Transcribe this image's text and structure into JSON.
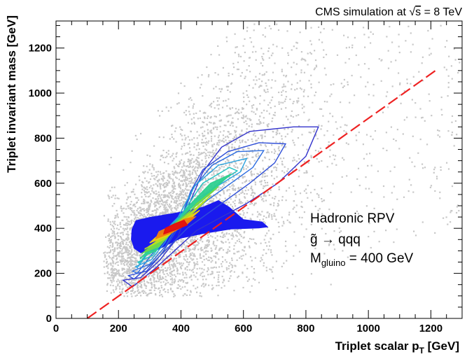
{
  "chart_data": {
    "type": "heatmap",
    "header": {
      "prefix": "CMS simulation at ",
      "sqrt_symbol": "√",
      "sqrt_arg": "s",
      "suffix": " = 8 TeV"
    },
    "xlabel": {
      "main": "Triplet scalar p",
      "sub": "T",
      "unit": " [GeV]"
    },
    "ylabel": "Triplet invariant mass [GeV]",
    "xlim": [
      0,
      1300
    ],
    "ylim": [
      0,
      1320
    ],
    "x_ticks": [
      "0",
      "200",
      "400",
      "600",
      "800",
      "1000",
      "1200"
    ],
    "y_ticks": [
      "0",
      "200",
      "400",
      "600",
      "800",
      "1000",
      "1200"
    ],
    "x_tick_values": [
      0,
      200,
      400,
      600,
      800,
      1000,
      1200
    ],
    "y_tick_values": [
      0,
      200,
      400,
      600,
      800,
      1000,
      1200
    ],
    "annotation": {
      "line1": "Hadronic RPV",
      "line2_tilde_g": "g̃",
      "line2_arrow": " → qqq",
      "line3_main": "M",
      "line3_sub": "gluino",
      "line3_rest": " = 400 GeV"
    },
    "diagonal_cut": {
      "style": "dashed",
      "color": "#ee2222",
      "points": [
        [
          100,
          0
        ],
        [
          1220,
          1105
        ]
      ]
    },
    "background_cloud": {
      "color": "#c8c8c8",
      "x_range": [
        150,
        1300
      ],
      "y_range": [
        100,
        1320
      ]
    },
    "contours": [
      {
        "level": 1,
        "color": "#3333cc",
        "points": [
          [
            215,
            170
          ],
          [
            270,
            180
          ],
          [
            330,
            255
          ],
          [
            390,
            360
          ],
          [
            430,
            520
          ],
          [
            470,
            650
          ],
          [
            530,
            760
          ],
          [
            620,
            830
          ],
          [
            760,
            850
          ],
          [
            840,
            850
          ],
          [
            800,
            720
          ],
          [
            710,
            600
          ],
          [
            610,
            510
          ],
          [
            450,
            390
          ],
          [
            320,
            225
          ],
          [
            245,
            140
          ],
          [
            215,
            170
          ]
        ]
      },
      {
        "level": 2,
        "color": "#2f4fd8",
        "points": [
          [
            232,
            190
          ],
          [
            290,
            210
          ],
          [
            340,
            290
          ],
          [
            390,
            400
          ],
          [
            430,
            560
          ],
          [
            470,
            660
          ],
          [
            550,
            740
          ],
          [
            650,
            780
          ],
          [
            735,
            775
          ],
          [
            700,
            690
          ],
          [
            620,
            600
          ],
          [
            530,
            510
          ],
          [
            420,
            400
          ],
          [
            320,
            260
          ],
          [
            250,
            175
          ],
          [
            232,
            190
          ]
        ]
      },
      {
        "level": 3,
        "color": "#2b6be0",
        "points": [
          [
            245,
            210
          ],
          [
            300,
            240
          ],
          [
            350,
            320
          ],
          [
            400,
            440
          ],
          [
            440,
            580
          ],
          [
            500,
            680
          ],
          [
            580,
            740
          ],
          [
            665,
            745
          ],
          [
            630,
            670
          ],
          [
            560,
            600
          ],
          [
            480,
            520
          ],
          [
            390,
            410
          ],
          [
            310,
            290
          ],
          [
            260,
            200
          ],
          [
            245,
            210
          ]
        ]
      },
      {
        "level": 4,
        "color": "#27a0dd",
        "points": [
          [
            255,
            230
          ],
          [
            305,
            260
          ],
          [
            350,
            340
          ],
          [
            395,
            460
          ],
          [
            445,
            590
          ],
          [
            520,
            680
          ],
          [
            610,
            710
          ],
          [
            590,
            650
          ],
          [
            520,
            590
          ],
          [
            440,
            520
          ],
          [
            370,
            420
          ],
          [
            300,
            300
          ],
          [
            260,
            225
          ],
          [
            255,
            230
          ]
        ]
      },
      {
        "level": 5,
        "color": "#22c2c0",
        "points": [
          [
            262,
            250
          ],
          [
            310,
            280
          ],
          [
            360,
            370
          ],
          [
            410,
            480
          ],
          [
            470,
            600
          ],
          [
            555,
            670
          ],
          [
            580,
            655
          ],
          [
            520,
            600
          ],
          [
            455,
            520
          ],
          [
            380,
            430
          ],
          [
            305,
            310
          ],
          [
            266,
            245
          ],
          [
            262,
            250
          ]
        ]
      },
      {
        "level": 6,
        "color": "#30d090",
        "points": [
          [
            270,
            270
          ],
          [
            320,
            300
          ],
          [
            370,
            390
          ],
          [
            425,
            500
          ],
          [
            495,
            600
          ],
          [
            560,
            640
          ],
          [
            510,
            580
          ],
          [
            440,
            500
          ],
          [
            370,
            410
          ],
          [
            305,
            320
          ],
          [
            270,
            265
          ],
          [
            270,
            270
          ]
        ]
      },
      {
        "level": 7,
        "color": "#70d84a",
        "points": [
          [
            276,
            290
          ],
          [
            330,
            320
          ],
          [
            390,
            410
          ],
          [
            450,
            510
          ],
          [
            520,
            585
          ],
          [
            500,
            560
          ],
          [
            440,
            490
          ],
          [
            380,
            420
          ],
          [
            315,
            335
          ],
          [
            276,
            288
          ],
          [
            276,
            290
          ]
        ]
      },
      {
        "level": 8,
        "color": "#b8e020",
        "points": [
          [
            285,
            310
          ],
          [
            345,
            350
          ],
          [
            410,
            430
          ],
          [
            470,
            510
          ],
          [
            495,
            545
          ],
          [
            440,
            480
          ],
          [
            385,
            420
          ],
          [
            320,
            340
          ],
          [
            285,
            308
          ],
          [
            285,
            310
          ]
        ]
      },
      {
        "level": 9,
        "color": "#f0d010",
        "points": [
          [
            300,
            335
          ],
          [
            360,
            370
          ],
          [
            420,
            430
          ],
          [
            460,
            480
          ],
          [
            420,
            445
          ],
          [
            370,
            400
          ],
          [
            320,
            360
          ],
          [
            300,
            335
          ]
        ]
      },
      {
        "level": 10,
        "color": "#f08010",
        "points": [
          [
            320,
            355
          ],
          [
            370,
            380
          ],
          [
            420,
            420
          ],
          [
            445,
            450
          ],
          [
            410,
            440
          ],
          [
            370,
            410
          ],
          [
            330,
            385
          ],
          [
            320,
            355
          ]
        ]
      },
      {
        "level": 11,
        "color": "#e01010",
        "points": [
          [
            345,
            375
          ],
          [
            385,
            395
          ],
          [
            420,
            415
          ],
          [
            410,
            435
          ],
          [
            380,
            420
          ],
          [
            350,
            400
          ],
          [
            345,
            375
          ]
        ]
      }
    ],
    "core_region": {
      "color": "#1a1aee",
      "points": [
        [
          255,
          435
        ],
        [
          300,
          450
        ],
        [
          380,
          468
        ],
        [
          470,
          495
        ],
        [
          520,
          525
        ],
        [
          555,
          495
        ],
        [
          600,
          440
        ],
        [
          660,
          430
        ],
        [
          680,
          405
        ],
        [
          650,
          400
        ],
        [
          560,
          395
        ],
        [
          470,
          375
        ],
        [
          400,
          355
        ],
        [
          320,
          300
        ],
        [
          270,
          290
        ],
        [
          250,
          310
        ],
        [
          240,
          350
        ],
        [
          242,
          395
        ],
        [
          255,
          435
        ]
      ]
    }
  }
}
